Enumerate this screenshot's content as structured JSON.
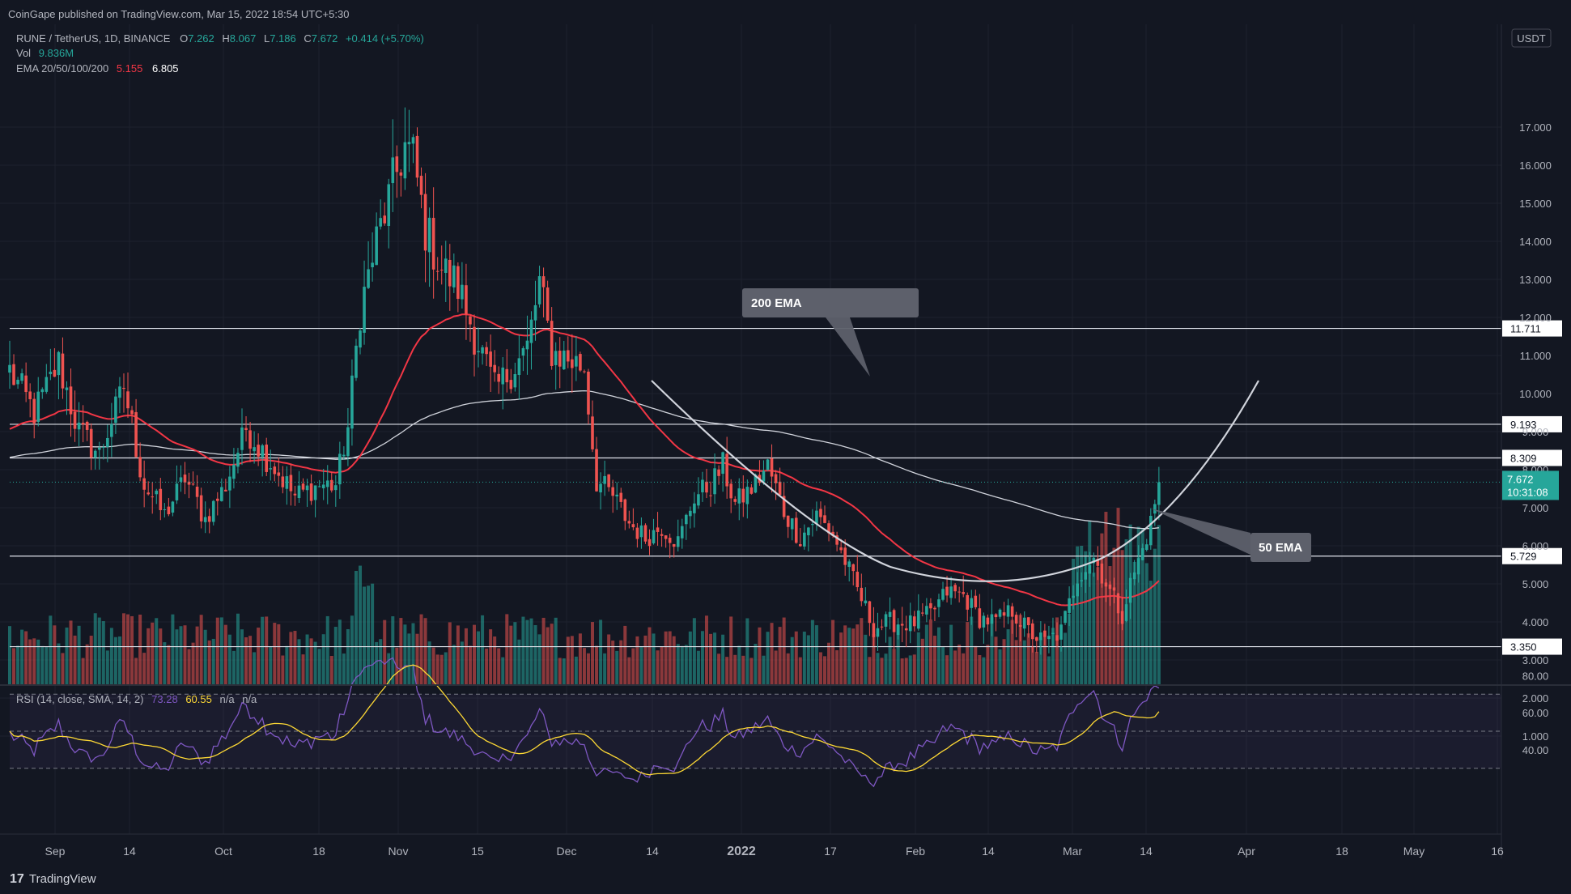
{
  "header": {
    "published": "CoinGape published on TradingView.com, Mar 15, 2022 18:54 UTC+5:30",
    "symbol": "RUNE / TetherUS, 1D, BINANCE",
    "ohlc": {
      "o_label": "O",
      "o": "7.262",
      "h_label": "H",
      "h": "8.067",
      "l_label": "L",
      "l": "7.186",
      "c_label": "C",
      "c": "7.672",
      "change": "+0.414 (+5.70%)"
    },
    "vol_label": "Vol",
    "vol_value": "9.836M",
    "ema_label": "EMA 20/50/100/200",
    "ema50_value": "5.155",
    "ema200_value": "6.805",
    "rsi_label": "RSI (14, close, SMA, 14, 2)",
    "rsi_value": "73.28",
    "rsi_sma_value": "60.55",
    "rsi_na1": "n/a",
    "rsi_na2": "n/a"
  },
  "currency": "USDT",
  "footer_brand": "TradingView",
  "colors": {
    "bg": "#131722",
    "up": "#26a69a",
    "down": "#ef5350",
    "ema50": "#f23645",
    "ema200": "#d1d4dc",
    "rsi": "#7e57c2",
    "rsi_sma": "#fdd835"
  },
  "chart_data": {
    "type": "candlestick",
    "price_axis": {
      "min": 0,
      "max": 17.5,
      "ticks": [
        "1.000",
        "2.000",
        "3.000",
        "4.000",
        "5.000",
        "6.000",
        "7.000",
        "8.000",
        "9.000",
        "10.000",
        "11.000",
        "12.000",
        "13.000",
        "14.000",
        "15.000",
        "16.000",
        "17.000"
      ]
    },
    "x_ticks": [
      "Sep",
      "14",
      "Oct",
      "18",
      "Nov",
      "15",
      "Dec",
      "14",
      "2022",
      "17",
      "Feb",
      "14",
      "Mar",
      "14",
      "Apr",
      "18",
      "May",
      "16"
    ],
    "levels": [
      {
        "label": "11.711",
        "value": 11.711
      },
      {
        "label": "9.193",
        "value": 9.193
      },
      {
        "label": "8.309",
        "value": 8.309
      },
      {
        "label": "5.729",
        "value": 5.729
      },
      {
        "label": "3.350",
        "value": 3.35
      }
    ],
    "last_price": {
      "label": "7.672",
      "countdown": "10:31:08",
      "value": 7.672
    },
    "callouts": [
      {
        "text": "200 EMA"
      },
      {
        "text": "50 EMA"
      }
    ],
    "rsi": {
      "ticks": [
        "40.00",
        "60.00",
        "80.00"
      ],
      "upper": 70,
      "lower": 30,
      "middle": 50,
      "last": 73.28,
      "sma_last": 60.55
    },
    "anchors": [
      [
        0,
        10.6
      ],
      [
        6,
        9.5
      ],
      [
        12,
        10.8
      ],
      [
        17,
        9.0
      ],
      [
        22,
        8.4
      ],
      [
        28,
        10.2
      ],
      [
        33,
        7.6
      ],
      [
        38,
        6.8
      ],
      [
        43,
        7.8
      ],
      [
        48,
        6.7
      ],
      [
        53,
        7.6
      ],
      [
        58,
        9.1
      ],
      [
        64,
        8.2
      ],
      [
        70,
        7.3
      ],
      [
        76,
        7.6
      ],
      [
        80,
        7.6
      ],
      [
        83,
        9.1
      ],
      [
        86,
        12.2
      ],
      [
        90,
        14.0
      ],
      [
        94,
        15.5
      ],
      [
        97,
        16.5
      ],
      [
        99,
        16.2
      ],
      [
        102,
        14.3
      ],
      [
        106,
        13.3
      ],
      [
        110,
        12.8
      ],
      [
        115,
        11.3
      ],
      [
        119,
        10.1
      ],
      [
        123,
        10.6
      ],
      [
        127,
        11.2
      ],
      [
        130,
        12.9
      ],
      [
        133,
        11.1
      ],
      [
        137,
        10.9
      ],
      [
        141,
        10.7
      ],
      [
        144,
        7.7
      ],
      [
        148,
        7.3
      ],
      [
        152,
        6.6
      ],
      [
        156,
        6.2
      ],
      [
        160,
        6.5
      ],
      [
        164,
        6.1
      ],
      [
        168,
        7.3
      ],
      [
        172,
        7.6
      ],
      [
        175,
        8.1
      ],
      [
        178,
        7.1
      ],
      [
        182,
        7.5
      ],
      [
        186,
        8.1
      ],
      [
        190,
        6.9
      ],
      [
        194,
        6.2
      ],
      [
        198,
        6.8
      ],
      [
        202,
        6.3
      ],
      [
        205,
        5.6
      ],
      [
        209,
        4.6
      ],
      [
        212,
        3.85
      ],
      [
        216,
        4.0
      ],
      [
        221,
        3.95
      ],
      [
        226,
        4.2
      ],
      [
        230,
        4.8
      ],
      [
        234,
        4.7
      ],
      [
        238,
        4.1
      ],
      [
        242,
        4.0
      ],
      [
        246,
        4.3
      ],
      [
        250,
        3.75
      ],
      [
        254,
        3.45
      ],
      [
        258,
        3.75
      ],
      [
        262,
        5.2
      ],
      [
        266,
        5.7
      ],
      [
        270,
        4.8
      ],
      [
        273,
        4.2
      ],
      [
        275,
        5.0
      ],
      [
        278,
        5.9
      ],
      [
        280,
        6.6
      ],
      [
        282,
        7.67
      ]
    ]
  }
}
